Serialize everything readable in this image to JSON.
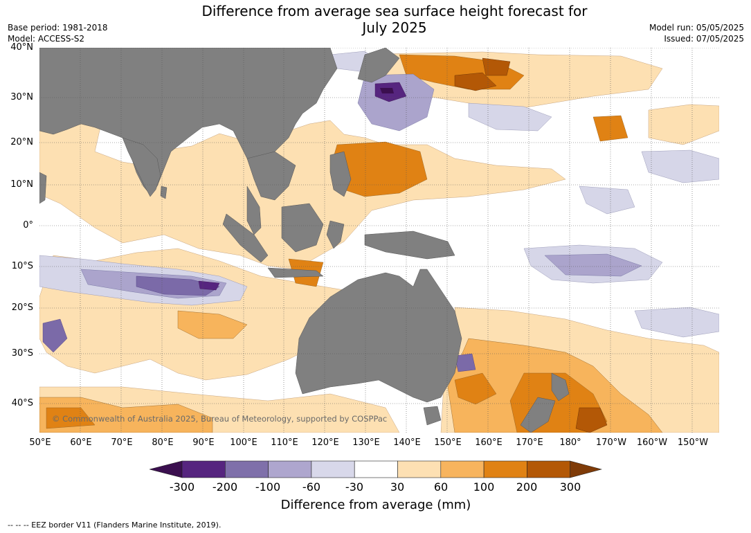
{
  "header": {
    "title_line1": "Difference from average sea surface height forecast for",
    "title_line2": "July 2025",
    "base_period": "Base period: 1981-2018",
    "model": "Model: ACCESS-S2",
    "model_run": "Model run: 05/05/2025",
    "issued": "Issued: 07/05/2025"
  },
  "map": {
    "lat_labels": [
      "40°N",
      "30°N",
      "20°N",
      "10°N",
      "0°",
      "10°S",
      "20°S",
      "30°S",
      "40°S"
    ],
    "lon_labels": [
      "50°E",
      "60°E",
      "70°E",
      "80°E",
      "90°E",
      "100°E",
      "110°E",
      "120°E",
      "130°E",
      "140°E",
      "150°E",
      "160°E",
      "170°E",
      "180°",
      "170°W",
      "160°W",
      "150°W"
    ],
    "watermark": "© Commonwealth of Australia 2025, Bureau of Meteorology, supported by COSPPac",
    "colors": {
      "land": "#808080",
      "ocean": "#ffffff",
      "neg_300": "#3b0f4f",
      "neg_200": "#56257f",
      "neg_100": "#7b6aa8",
      "neg_60": "#aba4cc",
      "neg_30": "#d6d6e8",
      "pos_30": "#fde0b2",
      "pos_60": "#f7b45c",
      "pos_100": "#e08214",
      "pos_200": "#b35806",
      "pos_300": "#7f3b08"
    }
  },
  "colorbar": {
    "tick_labels": [
      "-300",
      "-200",
      "-100",
      "-60",
      "-30",
      "30",
      "60",
      "100",
      "200",
      "300"
    ],
    "bin_colors": [
      "#3b0f4f",
      "#56257f",
      "#7f70aa",
      "#aea6ce",
      "#d8d8ea",
      "#ffffff",
      "#fde0b3",
      "#f7b45e",
      "#e08214",
      "#b35806",
      "#7f3b08"
    ],
    "title": "Difference from average (mm)"
  },
  "footer": {
    "eez": "--  --  -- EEZ border V11 (Flanders Marine Institute, 2019)."
  }
}
